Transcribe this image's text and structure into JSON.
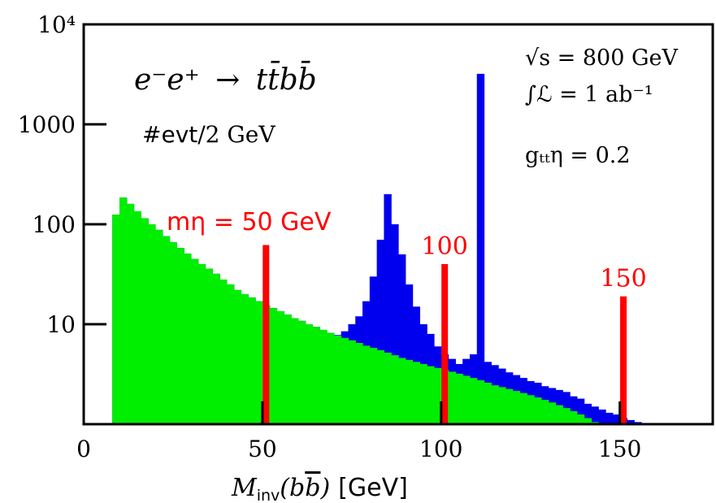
{
  "chart_data": {
    "type": "histogram",
    "scale": "log",
    "xlim": [
      0,
      176
    ],
    "ylim": [
      1,
      10000
    ],
    "bin_width": 2,
    "xlabel": {
      "main": "M",
      "sub": "inv",
      "args": "(b",
      "bbar": "b",
      "close": ")",
      "unit": "[GeV]"
    },
    "ylabel_note": {
      "prefix": "#evt",
      "suffix": "/2 GeV"
    },
    "process": {
      "lhs": "e⁻e⁺",
      "arrow": "→",
      "rhs": "tt̄bb̄"
    },
    "info_lines": [
      "√s = 800 GeV",
      "∫ℒ = 1 ab⁻¹",
      "gₜₜη = 0.2"
    ],
    "x_ticks": [
      {
        "value": 0,
        "label": "0"
      },
      {
        "value": 50,
        "label": "50"
      },
      {
        "value": 100,
        "label": "100"
      },
      {
        "value": 150,
        "label": "150"
      }
    ],
    "y_ticks": [
      {
        "value": 10,
        "label": "10"
      },
      {
        "value": 100,
        "label": "100"
      },
      {
        "value": 1000,
        "label": "1000"
      },
      {
        "value": 10000,
        "label": "10⁴"
      }
    ],
    "series": [
      {
        "name": "",
        "color": "#00ee00",
        "x_start": 8,
        "values": [
          125,
          185,
          160,
          135,
          115,
          100,
          88,
          76,
          66,
          58,
          51,
          45,
          40,
          36,
          32,
          28,
          25,
          22,
          20,
          18.5,
          17,
          15.5,
          14.5,
          13.5,
          12.5,
          11.5,
          10.8,
          10,
          9.4,
          8.8,
          8.2,
          7.7,
          7.3,
          6.9,
          6.5,
          6.1,
          5.8,
          5.5,
          5.2,
          4.9,
          4.6,
          4.4,
          4.2,
          4,
          3.8,
          3.65,
          3.5,
          3.35,
          3.2,
          3.05,
          2.9,
          2.75,
          2.6,
          2.45,
          2.35,
          2.25,
          2.15,
          2.05,
          1.95,
          1.85,
          1.75,
          1.65,
          1.55,
          1.45,
          1.35,
          1.25,
          1.15,
          1.05,
          1.0,
          1.0
        ]
      },
      {
        "name": "",
        "color": "#0000ee",
        "x_start": 8,
        "values": [
          125,
          185,
          160,
          135,
          115,
          100,
          88,
          76,
          66,
          58,
          51,
          45,
          40,
          36,
          32,
          28,
          25,
          22,
          20,
          18.5,
          17,
          15.5,
          14.5,
          13.5,
          12.5,
          11.5,
          10.8,
          10,
          9.4,
          8.5,
          8.2,
          7.8,
          8.5,
          10,
          12,
          17,
          30,
          70,
          200,
          100,
          50,
          25,
          15,
          10,
          8,
          6,
          5,
          4.5,
          4,
          4.5,
          5,
          3200,
          4.2,
          3.9,
          3.6,
          3.3,
          3.1,
          2.9,
          2.7,
          2.6,
          2.4,
          2.3,
          2.2,
          2.1,
          1.9,
          1.8,
          1.6,
          1.5,
          1.4,
          1.3,
          1.25,
          1.15,
          1.1,
          1.05,
          1.0,
          1.0,
          1.0,
          1.0
        ]
      }
    ],
    "signal_markers": [
      {
        "label": "mη = 50 GeV",
        "x": 51,
        "height": 62,
        "color": "#ff0000"
      },
      {
        "label": "100",
        "x": 101,
        "height": 40,
        "color": "#ff0000"
      },
      {
        "label": "150",
        "x": 151,
        "height": 19,
        "color": "#ff0000"
      }
    ],
    "legend": "none",
    "grid": false
  }
}
